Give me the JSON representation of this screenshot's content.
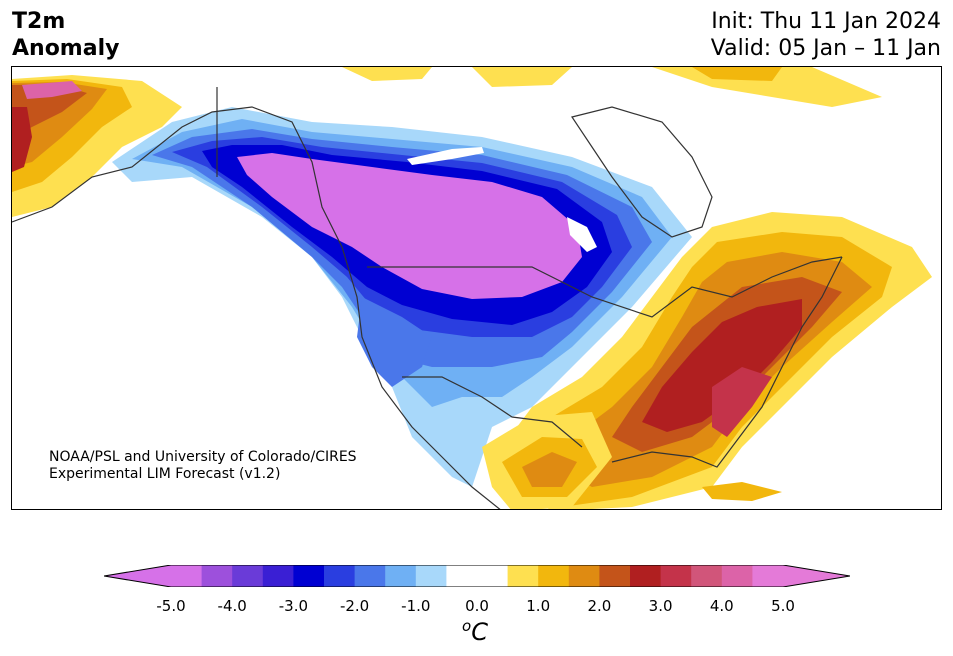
{
  "title": {
    "line1": "T2m",
    "line2": "Anomaly"
  },
  "init": "Init: Thu 11 Jan 2024",
  "valid": "Valid: 05 Jan – 11 Jan",
  "credit": {
    "line1": "NOAA/PSL and University of Colorado/CIRES",
    "line2": "Experimental LIM Forecast (v1.2)"
  },
  "colorbar": {
    "unit_prefix": "o",
    "unit": "C",
    "ticks": [
      "-5.0",
      "-4.0",
      "-3.0",
      "-2.0",
      "-1.0",
      "0.0",
      "1.0",
      "2.0",
      "3.0",
      "4.0",
      "5.0"
    ],
    "colors": [
      "#d671e8",
      "#9d50dc",
      "#6a3bd8",
      "#3a1fd4",
      "#0000d2",
      "#2a3ee0",
      "#4a77ea",
      "#6fb0f4",
      "#a8d8fa",
      "#ffffff",
      "#ffffff",
      "#fee050",
      "#f2b70d",
      "#df8b12",
      "#c4541a",
      "#b01f20",
      "#c4334a",
      "#d1557a",
      "#dc63a8",
      "#e47ad8"
    ],
    "under_color": "#d671e8",
    "over_color": "#e47ad8"
  }
}
